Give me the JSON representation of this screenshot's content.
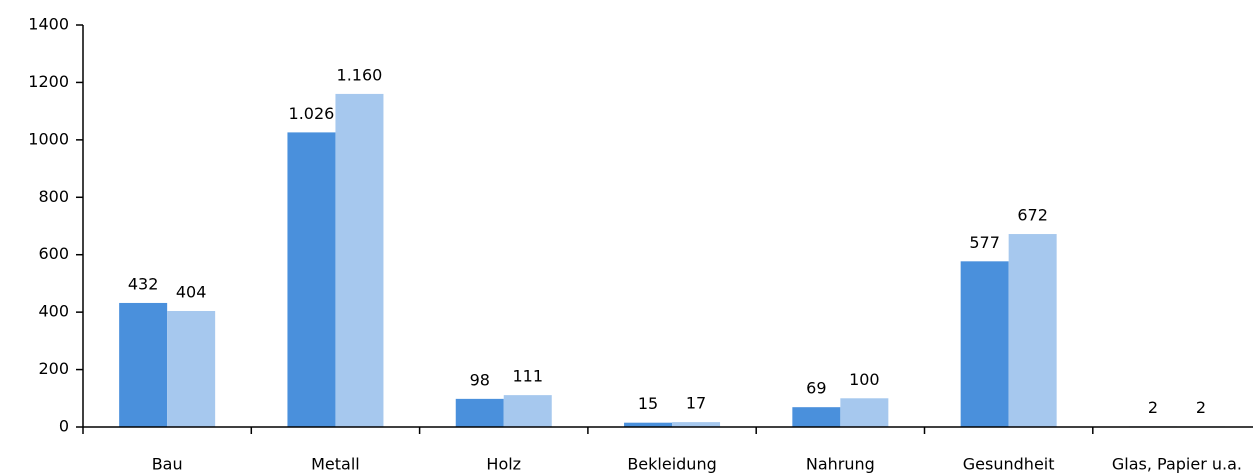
{
  "chart_data": {
    "type": "bar",
    "categories": [
      "Bau",
      "Metall",
      "Holz",
      "Bekleidung",
      "Nahrung",
      "Gesundheit",
      "Glas, Papier u.a."
    ],
    "series": [
      {
        "color": "#4a90dc",
        "values": [
          432,
          1026,
          98,
          15,
          69,
          577,
          2
        ],
        "value_labels": [
          "432",
          "1.026",
          "98",
          "15",
          "69",
          "577",
          "2"
        ]
      },
      {
        "color": "#a6c8ee",
        "values": [
          404,
          1160,
          111,
          17,
          100,
          672,
          2
        ],
        "value_labels": [
          "404",
          "1.160",
          "111",
          "17",
          "100",
          "672",
          "2"
        ]
      }
    ],
    "ylim": [
      0,
      1400
    ],
    "yticks": [
      0,
      200,
      400,
      600,
      800,
      1000,
      1200,
      1400
    ]
  }
}
